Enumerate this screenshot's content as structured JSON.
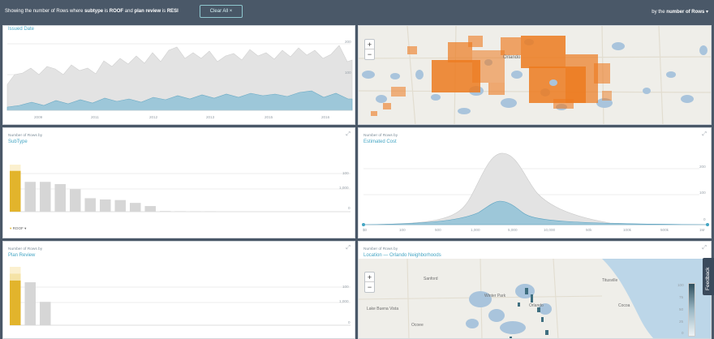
{
  "topbar": {
    "filter_prefix": "Showing the number of Rows",
    "filter_where": "where",
    "filter_field1": "subtype",
    "filter_is1": "is",
    "filter_value1": "ROOF",
    "filter_and": "and",
    "filter_field2": "plan review",
    "filter_is2": "is",
    "filter_value2": "RESI",
    "clear_label": "Clear All",
    "clear_icon": "×",
    "sort_prefix": "by the",
    "sort_value": "number of Rows",
    "sort_icon": "▾"
  },
  "panel_timeline": {
    "title": "Issued Date",
    "x_labels": [
      "2009",
      "2011",
      "2012",
      "2013",
      "2015",
      "2016"
    ],
    "y_labels": [
      "200",
      "100"
    ]
  },
  "panel_subtype": {
    "caption": "Number of Rows by",
    "title": "SubType",
    "y_labels": [
      "100",
      "1,000",
      "0"
    ],
    "selected_label": "ROOF",
    "chart_data": {
      "type": "bar",
      "categories": [
        "ROOF",
        "",
        "",
        "",
        "",
        "",
        "",
        "",
        "",
        "",
        "",
        "",
        "",
        ""
      ],
      "values": [
        1300,
        950,
        950,
        880,
        720,
        430,
        390,
        370,
        280,
        180,
        20,
        15,
        12,
        10
      ],
      "selected_values": [
        1300,
        0,
        0,
        0,
        0,
        0,
        0,
        0,
        0,
        0,
        0,
        0,
        0,
        0
      ],
      "ylim": [
        0,
        1500
      ]
    }
  },
  "panel_cost": {
    "caption": "Number of Rows by",
    "title": "Estimated Cost",
    "y_labels": [
      "200",
      "100",
      "0"
    ],
    "x_labels": [
      "$0",
      "100",
      "500",
      "1,000",
      "5,000",
      "10,000",
      "50k",
      "100k",
      "500k",
      "1M"
    ]
  },
  "panel_planreview": {
    "caption": "Number of Rows by",
    "title": "Plan Review",
    "y_labels": [
      "100",
      "1,000",
      "0"
    ],
    "chart_data": {
      "type": "bar",
      "categories": [
        "",
        "",
        ""
      ],
      "values": [
        1500,
        1250,
        680
      ],
      "selected_values": [
        1300,
        0,
        0
      ],
      "ylim": [
        0,
        1700
      ]
    }
  },
  "panel_location": {
    "caption": "Number of Rows by",
    "title": "Location — Orlando Neighborhoods",
    "place_labels": [
      "Sanford",
      "Winter Park",
      "Orlando",
      "Lake Buena Vista",
      "Ocoee",
      "Cocoa",
      "Titusville"
    ],
    "legend_labels": [
      "100",
      "75",
      "50",
      "25",
      "0"
    ]
  },
  "map_roof": {
    "place_label": "Orlando"
  },
  "map_controls": {
    "zoom_in": "+",
    "zoom_out": "−"
  },
  "feedback_label": "Feedback",
  "colors": {
    "accent": "#45a6c4",
    "selected": "#e2b42c",
    "bars": "#d6d6d6",
    "map_points": "#ec7a1f"
  }
}
